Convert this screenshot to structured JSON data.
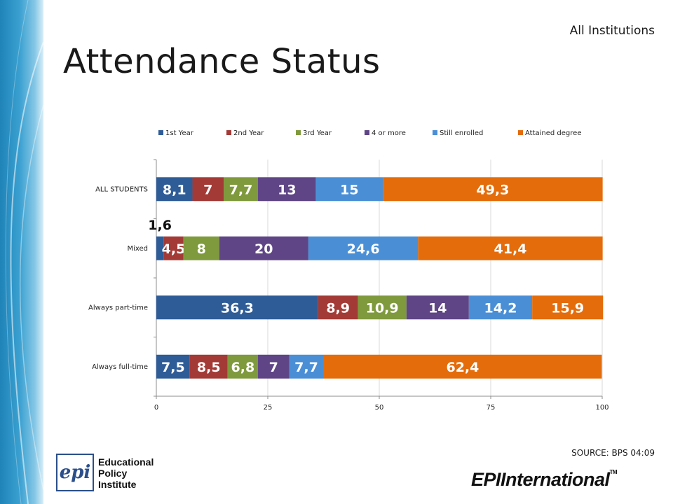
{
  "page": {
    "title": "Attendance Status",
    "corner_label": "All Institutions",
    "source": "SOURCE: BPS 04:09",
    "logo_left": {
      "mark": "epi",
      "lines": [
        "Educational",
        "Policy",
        "Institute"
      ]
    },
    "logo_right": {
      "text": "EPIInternational",
      "tm": "TM"
    }
  },
  "chart_data": {
    "type": "bar",
    "orientation": "horizontal",
    "stacked": true,
    "categories": [
      "ALL STUDENTS",
      "Mixed",
      "Always part-time",
      "Always full-time"
    ],
    "series": [
      {
        "name": "1st Year",
        "color": "#2e5c97",
        "values": [
          8.1,
          1.6,
          36.3,
          7.5
        ],
        "labels": [
          "8,1",
          "1,6",
          "36,3",
          "7,5"
        ]
      },
      {
        "name": "2nd Year",
        "color": "#a33a36",
        "values": [
          7,
          4.5,
          8.9,
          8.5
        ],
        "labels": [
          "7",
          "4,5",
          "8,9",
          "8,5"
        ]
      },
      {
        "name": "3rd Year",
        "color": "#7f9a3c",
        "values": [
          7.7,
          8,
          10.9,
          6.8
        ],
        "labels": [
          "7,7",
          "8",
          "10,9",
          "6,8"
        ]
      },
      {
        "name": "4 or more",
        "color": "#5f4586",
        "values": [
          13,
          20,
          14,
          7
        ],
        "labels": [
          "13",
          "20",
          "14",
          "7"
        ]
      },
      {
        "name": "Still enrolled",
        "color": "#4a8fd6",
        "values": [
          15,
          24.6,
          14.2,
          7.7
        ],
        "labels": [
          "15",
          "24,6",
          "14,2",
          "7,7"
        ]
      },
      {
        "name": "Attained degree",
        "color": "#e46c0a",
        "values": [
          49.3,
          41.4,
          15.9,
          62.4
        ],
        "labels": [
          "49,3",
          "41,4",
          "15,9",
          "62,4"
        ]
      }
    ],
    "xlim": [
      0,
      100
    ],
    "xticks": [
      0,
      25,
      50,
      75,
      100
    ],
    "xticklabels": [
      "0",
      "25",
      "50",
      "75",
      "100"
    ],
    "legend_position": "top",
    "grid": "vertical"
  }
}
